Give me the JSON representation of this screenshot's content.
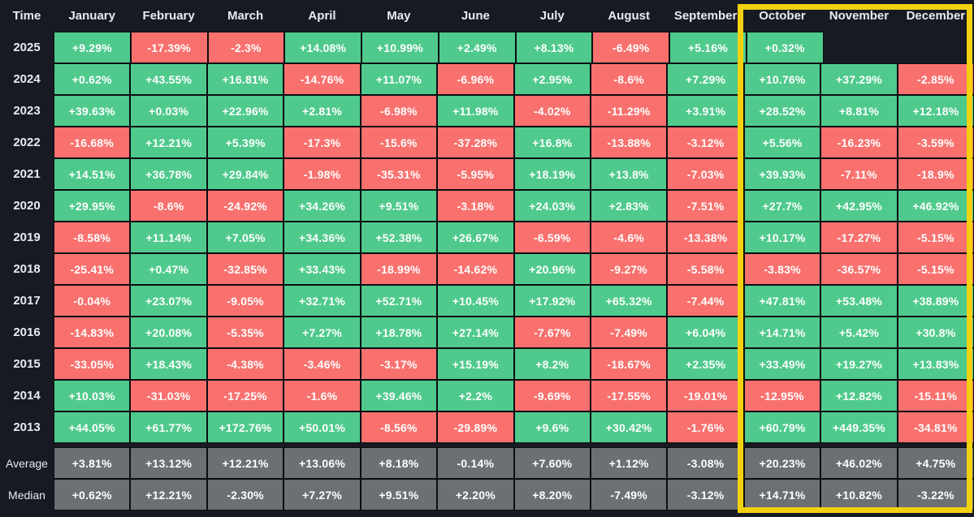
{
  "table": {
    "columns": [
      "Time",
      "January",
      "February",
      "March",
      "April",
      "May",
      "June",
      "July",
      "August",
      "September",
      "October",
      "November",
      "December"
    ],
    "highlighted_columns": [
      "October",
      "November",
      "December"
    ],
    "rows": [
      {
        "label": "2025",
        "type": "year",
        "values": [
          "+9.29%",
          "-17.39%",
          "-2.3%",
          "+14.08%",
          "+10.99%",
          "+2.49%",
          "+8.13%",
          "-6.49%",
          "+5.16%",
          "+0.32%",
          "",
          ""
        ]
      },
      {
        "label": "2024",
        "type": "year",
        "values": [
          "+0.62%",
          "+43.55%",
          "+16.81%",
          "-14.76%",
          "+11.07%",
          "-6.96%",
          "+2.95%",
          "-8.6%",
          "+7.29%",
          "+10.76%",
          "+37.29%",
          "-2.85%"
        ]
      },
      {
        "label": "2023",
        "type": "year",
        "values": [
          "+39.63%",
          "+0.03%",
          "+22.96%",
          "+2.81%",
          "-6.98%",
          "+11.98%",
          "-4.02%",
          "-11.29%",
          "+3.91%",
          "+28.52%",
          "+8.81%",
          "+12.18%"
        ]
      },
      {
        "label": "2022",
        "type": "year",
        "values": [
          "-16.68%",
          "+12.21%",
          "+5.39%",
          "-17.3%",
          "-15.6%",
          "-37.28%",
          "+16.8%",
          "-13.88%",
          "-3.12%",
          "+5.56%",
          "-16.23%",
          "-3.59%"
        ]
      },
      {
        "label": "2021",
        "type": "year",
        "values": [
          "+14.51%",
          "+36.78%",
          "+29.84%",
          "-1.98%",
          "-35.31%",
          "-5.95%",
          "+18.19%",
          "+13.8%",
          "-7.03%",
          "+39.93%",
          "-7.11%",
          "-18.9%"
        ]
      },
      {
        "label": "2020",
        "type": "year",
        "values": [
          "+29.95%",
          "-8.6%",
          "-24.92%",
          "+34.26%",
          "+9.51%",
          "-3.18%",
          "+24.03%",
          "+2.83%",
          "-7.51%",
          "+27.7%",
          "+42.95%",
          "+46.92%"
        ]
      },
      {
        "label": "2019",
        "type": "year",
        "values": [
          "-8.58%",
          "+11.14%",
          "+7.05%",
          "+34.36%",
          "+52.38%",
          "+26.67%",
          "-6.59%",
          "-4.6%",
          "-13.38%",
          "+10.17%",
          "-17.27%",
          "-5.15%"
        ]
      },
      {
        "label": "2018",
        "type": "year",
        "values": [
          "-25.41%",
          "+0.47%",
          "-32.85%",
          "+33.43%",
          "-18.99%",
          "-14.62%",
          "+20.96%",
          "-9.27%",
          "-5.58%",
          "-3.83%",
          "-36.57%",
          "-5.15%"
        ]
      },
      {
        "label": "2017",
        "type": "year",
        "values": [
          "-0.04%",
          "+23.07%",
          "-9.05%",
          "+32.71%",
          "+52.71%",
          "+10.45%",
          "+17.92%",
          "+65.32%",
          "-7.44%",
          "+47.81%",
          "+53.48%",
          "+38.89%"
        ]
      },
      {
        "label": "2016",
        "type": "year",
        "values": [
          "-14.83%",
          "+20.08%",
          "-5.35%",
          "+7.27%",
          "+18.78%",
          "+27.14%",
          "-7.67%",
          "-7.49%",
          "+6.04%",
          "+14.71%",
          "+5.42%",
          "+30.8%"
        ]
      },
      {
        "label": "2015",
        "type": "year",
        "values": [
          "-33.05%",
          "+18.43%",
          "-4.38%",
          "-3.46%",
          "-3.17%",
          "+15.19%",
          "+8.2%",
          "-18.67%",
          "+2.35%",
          "+33.49%",
          "+19.27%",
          "+13.83%"
        ]
      },
      {
        "label": "2014",
        "type": "year",
        "values": [
          "+10.03%",
          "-31.03%",
          "-17.25%",
          "-1.6%",
          "+39.46%",
          "+2.2%",
          "-9.69%",
          "-17.55%",
          "-19.01%",
          "-12.95%",
          "+12.82%",
          "-15.11%"
        ]
      },
      {
        "label": "2013",
        "type": "year",
        "values": [
          "+44.05%",
          "+61.77%",
          "+172.76%",
          "+50.01%",
          "-8.56%",
          "-29.89%",
          "+9.6%",
          "+30.42%",
          "-1.76%",
          "+60.79%",
          "+449.35%",
          "-34.81%"
        ]
      },
      {
        "label": "Average",
        "type": "summary",
        "values": [
          "+3.81%",
          "+13.12%",
          "+12.21%",
          "+13.06%",
          "+8.18%",
          "-0.14%",
          "+7.60%",
          "+1.12%",
          "-3.08%",
          "+20.23%",
          "+46.02%",
          "+4.75%"
        ]
      },
      {
        "label": "Median",
        "type": "summary",
        "values": [
          "+0.62%",
          "+12.21%",
          "-2.30%",
          "+7.27%",
          "+9.51%",
          "+2.20%",
          "+8.20%",
          "-7.49%",
          "-3.12%",
          "+14.71%",
          "+10.82%",
          "-3.22%"
        ]
      }
    ],
    "colors": {
      "positive_cell": "#4FCA8C",
      "negative_cell": "#F8716E",
      "summary_cell": "#6C6F74",
      "highlight_border": "#F3D10E",
      "background": "#171A22",
      "grid_line": "#0B0D11",
      "cell_text": "#FFFFFF",
      "header_text": "#E9EBF0"
    }
  },
  "chart_data": {
    "type": "heatmap",
    "title": "Monthly returns by year (%)",
    "x_labels": [
      "January",
      "February",
      "March",
      "April",
      "May",
      "June",
      "July",
      "August",
      "September",
      "October",
      "November",
      "December"
    ],
    "y_labels": [
      "2025",
      "2024",
      "2023",
      "2022",
      "2021",
      "2020",
      "2019",
      "2018",
      "2017",
      "2016",
      "2015",
      "2014",
      "2013",
      "Average",
      "Median"
    ],
    "values": [
      [
        9.29,
        -17.39,
        -2.3,
        14.08,
        10.99,
        2.49,
        8.13,
        -6.49,
        5.16,
        0.32,
        null,
        null
      ],
      [
        0.62,
        43.55,
        16.81,
        -14.76,
        11.07,
        -6.96,
        2.95,
        -8.6,
        7.29,
        10.76,
        37.29,
        -2.85
      ],
      [
        39.63,
        0.03,
        22.96,
        2.81,
        -6.98,
        11.98,
        -4.02,
        -11.29,
        3.91,
        28.52,
        8.81,
        12.18
      ],
      [
        -16.68,
        12.21,
        5.39,
        -17.3,
        -15.6,
        -37.28,
        16.8,
        -13.88,
        -3.12,
        5.56,
        -16.23,
        -3.59
      ],
      [
        14.51,
        36.78,
        29.84,
        -1.98,
        -35.31,
        -5.95,
        18.19,
        13.8,
        -7.03,
        39.93,
        -7.11,
        -18.9
      ],
      [
        29.95,
        -8.6,
        -24.92,
        34.26,
        9.51,
        -3.18,
        24.03,
        2.83,
        -7.51,
        27.7,
        42.95,
        46.92
      ],
      [
        -8.58,
        11.14,
        7.05,
        34.36,
        52.38,
        26.67,
        -6.59,
        -4.6,
        -13.38,
        10.17,
        -17.27,
        -5.15
      ],
      [
        -25.41,
        0.47,
        -32.85,
        33.43,
        -18.99,
        -14.62,
        20.96,
        -9.27,
        -5.58,
        -3.83,
        -36.57,
        -5.15
      ],
      [
        -0.04,
        23.07,
        -9.05,
        32.71,
        52.71,
        10.45,
        17.92,
        65.32,
        -7.44,
        47.81,
        53.48,
        38.89
      ],
      [
        -14.83,
        20.08,
        -5.35,
        7.27,
        18.78,
        27.14,
        -7.67,
        -7.49,
        6.04,
        14.71,
        5.42,
        30.8
      ],
      [
        -33.05,
        18.43,
        -4.38,
        -3.46,
        -3.17,
        15.19,
        8.2,
        -18.67,
        2.35,
        33.49,
        19.27,
        13.83
      ],
      [
        10.03,
        -31.03,
        -17.25,
        -1.6,
        39.46,
        2.2,
        -9.69,
        -17.55,
        -19.01,
        -12.95,
        12.82,
        -15.11
      ],
      [
        44.05,
        61.77,
        172.76,
        50.01,
        -8.56,
        -29.89,
        9.6,
        30.42,
        -1.76,
        60.79,
        449.35,
        -34.81
      ],
      [
        3.81,
        13.12,
        12.21,
        13.06,
        8.18,
        -0.14,
        7.6,
        1.12,
        -3.08,
        20.23,
        46.02,
        4.75
      ],
      [
        0.62,
        12.21,
        -2.3,
        7.27,
        9.51,
        2.2,
        8.2,
        -7.49,
        -3.12,
        14.71,
        10.82,
        -3.22
      ]
    ],
    "legend": "green = positive month, red = negative month, gray = summary rows",
    "annotations": "October–December columns outlined with yellow highlight box",
    "grid": true
  }
}
